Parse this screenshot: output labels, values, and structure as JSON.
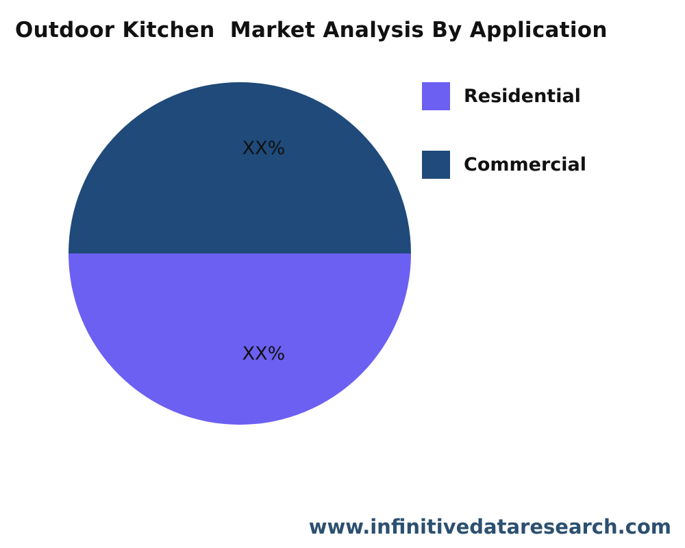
{
  "chart_data": {
    "type": "pie",
    "title": "Outdoor Kitchen  Market Analysis By Application",
    "slices": [
      {
        "name": "Residential",
        "value": 50,
        "label": "XX%",
        "color": "#6c60f2"
      },
      {
        "name": "Commercial",
        "value": 50,
        "label": "XX%",
        "color": "#1f4a7a"
      }
    ],
    "legend_position": "right"
  },
  "watermark": "www.infinitivedataresearch.com"
}
